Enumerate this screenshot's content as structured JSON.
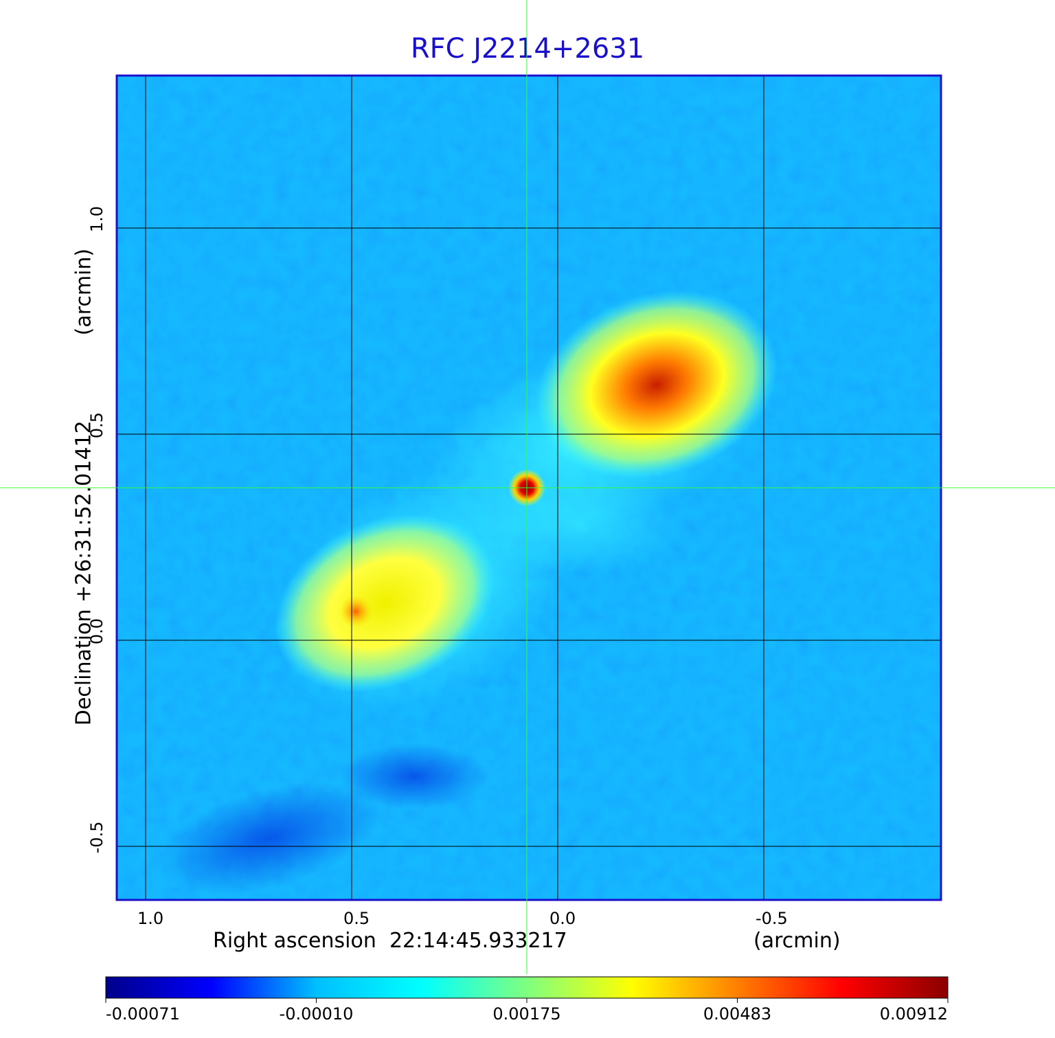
{
  "title": "RFC J2214+2631",
  "x_axis": {
    "label_name": "Right ascension",
    "label_value": "22:14:45.933217",
    "unit": "(arcmin)",
    "ticks": [
      "1.0",
      "0.5",
      "0.0",
      "-0.5"
    ]
  },
  "y_axis": {
    "label": "Declination  +26:31:52.01412",
    "unit": "(arcmin)",
    "ticks": [
      "1.0",
      "0.5",
      "0.0",
      "-0.5"
    ]
  },
  "colorbar": {
    "ticks": [
      "-0.00071",
      "-0.00010",
      "0.00175",
      "0.00483",
      "0.00912"
    ],
    "colors": [
      "#00008b",
      "#0000ff",
      "#00bfff",
      "#00ffff",
      "#7fff7f",
      "#ffff00",
      "#ff7f00",
      "#ff0000",
      "#8b0000"
    ]
  },
  "colors": {
    "title": "#1a10cc",
    "frame": "#1a10cc",
    "crosshair": "#33ff33",
    "grid": "#000000",
    "background_map": "#1f9bff"
  },
  "chart_data": {
    "type": "heatmap",
    "title": "RFC J2214+2631",
    "xlabel": "Right ascension  22:14:45.933217 (arcmin)",
    "ylabel": "Declination  +26:31:52.01412 (arcmin)",
    "xlim": [
      1.07,
      -0.93
    ],
    "ylim": [
      -0.63,
      1.37
    ],
    "x_direction": "decreasing",
    "grid": true,
    "x_grid": [
      1.0,
      0.5,
      0.0,
      -0.5
    ],
    "y_grid": [
      1.0,
      0.5,
      0.0,
      -0.5
    ],
    "crosshair": {
      "x": 0.075,
      "y": 0.37
    },
    "colorscale": {
      "min": -0.00071,
      "max": 0.00912,
      "ticks": [
        -0.00071,
        -0.0001,
        0.00175,
        0.00483,
        0.00912
      ]
    },
    "features": [
      {
        "type": "core",
        "x": 0.075,
        "y": 0.37,
        "peak": 0.00912
      },
      {
        "type": "lobe",
        "x": -0.27,
        "y": 0.67,
        "peak": 0.0075
      },
      {
        "type": "lobe",
        "x": 0.42,
        "y": 0.07,
        "peak": 0.0048
      },
      {
        "type": "hotspot",
        "x": 0.49,
        "y": 0.07,
        "peak": 0.006
      }
    ]
  }
}
